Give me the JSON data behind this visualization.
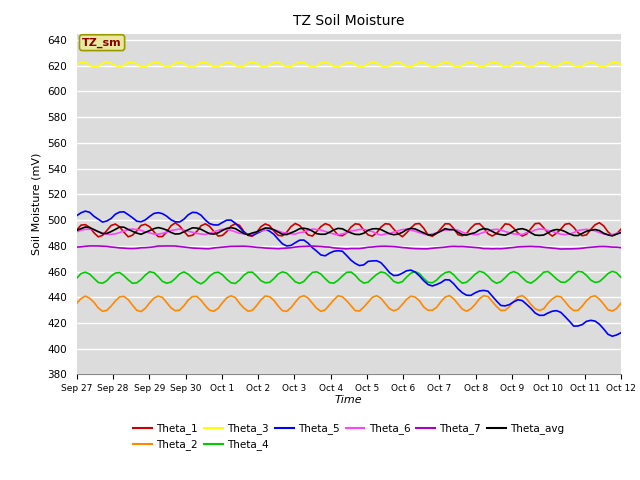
{
  "title": "TZ Soil Moisture",
  "xlabel": "Time",
  "ylabel": "Soil Moisture (mV)",
  "ylim": [
    380,
    645
  ],
  "yticks": [
    380,
    400,
    420,
    440,
    460,
    480,
    500,
    520,
    540,
    560,
    580,
    600,
    620,
    640
  ],
  "background_color": "#dcdcdc",
  "series_order": [
    "Theta_1",
    "Theta_2",
    "Theta_3",
    "Theta_4",
    "Theta_5",
    "Theta_6",
    "Theta_7",
    "Theta_avg"
  ],
  "series": {
    "Theta_1": {
      "color": "#cc0000",
      "base": 492,
      "trend": 0.05,
      "amp": 5.0,
      "freq": 1.2,
      "noise": 0.3
    },
    "Theta_2": {
      "color": "#ff8800",
      "base": 435,
      "trend": 0.02,
      "amp": 6.0,
      "freq": 1.0,
      "noise": 0.2
    },
    "Theta_3": {
      "color": "#ffff00",
      "base": 621,
      "trend": 0.0,
      "amp": 2.0,
      "freq": 1.5,
      "noise": 0.1
    },
    "Theta_4": {
      "color": "#00cc00",
      "base": 455,
      "trend": 0.05,
      "amp": 4.5,
      "freq": 1.1,
      "noise": 0.2
    },
    "Theta_5": {
      "color": "#0000ff",
      "base": 503,
      "trend": -0.3,
      "amp": 4.0,
      "freq": 1.0,
      "noise": 0.3
    },
    "Theta_6": {
      "color": "#ff44ff",
      "base": 491,
      "trend": -0.02,
      "amp": 2.0,
      "freq": 0.8,
      "noise": 0.2
    },
    "Theta_7": {
      "color": "#aa00cc",
      "base": 479,
      "trend": -0.04,
      "amp": 1.0,
      "freq": 0.5,
      "noise": 0.1
    },
    "Theta_avg": {
      "color": "#000000",
      "base": 492,
      "trend": -0.12,
      "amp": 2.5,
      "freq": 1.0,
      "noise": 0.2
    }
  },
  "xtick_labels": [
    "Sep 27",
    "Sep 28",
    "Sep 29",
    "Sep 30",
    "Oct 1",
    "Oct 2",
    "Oct 3",
    "Oct 4",
    "Oct 5",
    "Oct 6",
    "Oct 7",
    "Oct 8",
    "Oct 9",
    "Oct 10",
    "Oct 11",
    "Oct 12"
  ],
  "legend_box_label": "TZ_sm",
  "legend_box_color": "#e8e8a0",
  "legend_box_edge_color": "#999900",
  "legend_box_text_color": "#880000",
  "theta5_break_day": 3.5,
  "theta5_extra_trend": -7.5
}
